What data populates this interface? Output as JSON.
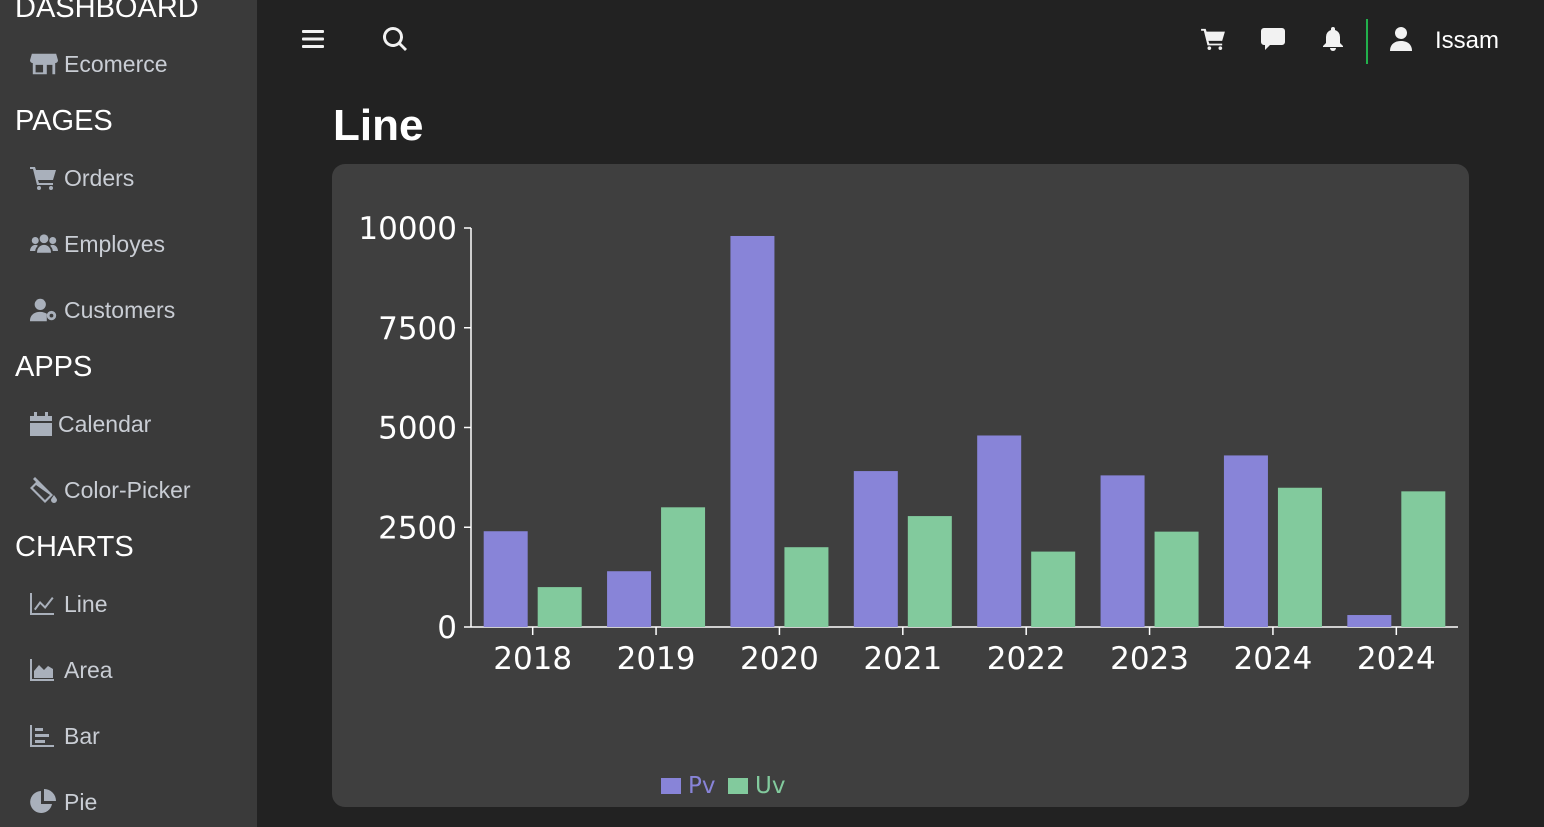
{
  "sidebar": {
    "sections": {
      "dashboard": "DASHBOARD",
      "pages": "PAGES",
      "apps": "APPS",
      "charts": "CHARTS"
    },
    "items": {
      "ecommerce": {
        "label": "Ecomerce",
        "icon": "store-icon"
      },
      "orders": {
        "label": "Orders",
        "icon": "cart-icon"
      },
      "employes": {
        "label": "Employes",
        "icon": "users-icon"
      },
      "customers": {
        "label": "Customers",
        "icon": "user-gear-icon"
      },
      "calendar": {
        "label": "Calendar",
        "icon": "calendar-icon"
      },
      "color_picker": {
        "label": "Color-Picker",
        "icon": "paint-bucket-icon"
      },
      "line": {
        "label": "Line",
        "icon": "line-chart-icon"
      },
      "area": {
        "label": "Area",
        "icon": "area-chart-icon"
      },
      "bar": {
        "label": "Bar",
        "icon": "bar-chart-icon"
      },
      "pie": {
        "label": "Pie",
        "icon": "pie-chart-icon"
      }
    }
  },
  "header": {
    "username": "Issam",
    "icons": [
      "menu-icon",
      "search-icon",
      "cart-icon",
      "chat-icon",
      "bell-icon",
      "user-icon"
    ],
    "divider_color": "#22b14c"
  },
  "main": {
    "page_title": "Line"
  },
  "colors": {
    "pv": "#8884d8",
    "uv": "#82ca9d",
    "card_bg": "#3f3f3f",
    "sidebar_bg": "#3a3a3a"
  },
  "chart_data": {
    "type": "bar",
    "categories": [
      "2018",
      "2019",
      "2020",
      "2021",
      "2022",
      "2023",
      "2024",
      "2024"
    ],
    "series": [
      {
        "name": "Pv",
        "color": "#8884d8",
        "values": [
          2400,
          1398,
          9800,
          3908,
          4800,
          3800,
          4300,
          300
        ]
      },
      {
        "name": "Uv",
        "color": "#82ca9d",
        "values": [
          1000,
          3000,
          2000,
          2780,
          1890,
          2390,
          3490,
          3400
        ]
      }
    ],
    "yticks": [
      0,
      2500,
      5000,
      7500,
      10000
    ],
    "ylim": [
      0,
      10000
    ],
    "legend": "bottom-center",
    "grid": false
  }
}
